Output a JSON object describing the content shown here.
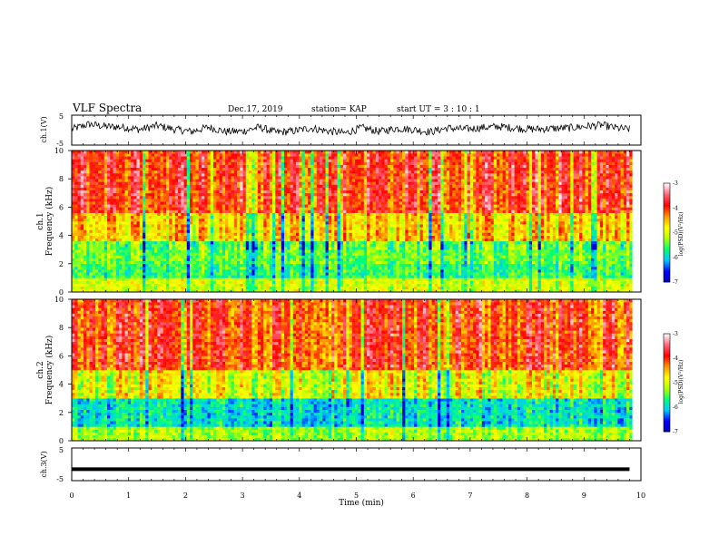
{
  "header": {
    "title": "VLF Spectra",
    "date": "Dec.17, 2019",
    "station": "station= KAP",
    "start": "start  UT =  3 : 10 : 1"
  },
  "chart_data": [
    {
      "type": "line",
      "panel": "ch1-waveform",
      "ylabel": "ch.1(V)",
      "ylim": [
        -5,
        5
      ],
      "yticks": [
        "5",
        "-5"
      ],
      "xlim": [
        0,
        10
      ],
      "series": [
        {
          "x": [
            0.0,
            0.3,
            0.6,
            0.9,
            1.2,
            1.5,
            1.8,
            2.1,
            2.4,
            2.7,
            3.0,
            3.3,
            3.6,
            3.9,
            4.2,
            4.5,
            4.8,
            5.1,
            5.4,
            5.7,
            6.0,
            6.3,
            6.6,
            6.9,
            7.2,
            7.5,
            7.8,
            8.1,
            8.4,
            8.7,
            9.0,
            9.3,
            9.6,
            9.8
          ],
          "values": [
            0.3,
            2.0,
            1.2,
            1.0,
            0.2,
            1.5,
            0.3,
            -0.5,
            1.0,
            -0.5,
            -0.4,
            1.0,
            -0.8,
            -0.3,
            0.7,
            -0.3,
            -1.0,
            0.8,
            -0.5,
            0.6,
            0.2,
            -0.6,
            0.7,
            0.3,
            0.8,
            1.2,
            0.7,
            0.3,
            0.5,
            0.7,
            1.2,
            1.7,
            0.6,
            0.3
          ]
        }
      ]
    },
    {
      "type": "heatmap",
      "panel": "ch1-spectrogram",
      "ylabel_line1": "ch.1",
      "ylabel_line2": "Frequency (kHz)",
      "ylim": [
        0,
        10
      ],
      "yticks": [
        "0",
        "2",
        "4",
        "6",
        "8",
        "10"
      ],
      "xlim": [
        0,
        10
      ],
      "colorbar": {
        "label": "log(PSD)(V²/Hz)",
        "range": [
          -7,
          -3
        ],
        "ticks": [
          "-3",
          "-4",
          "-5",
          "-6",
          "-7"
        ],
        "colormap": [
          "#0000b4",
          "#0000ff",
          "#00c8ff",
          "#00ff78",
          "#b4ff00",
          "#ffff00",
          "#ff9600",
          "#ff0000",
          "#ff6478",
          "#ffffff"
        ]
      },
      "rows_low_to_high_freq": [
        {
          "freq_range": [
            0,
            1.0
          ],
          "log_psd": -5.0
        },
        {
          "freq_range": [
            1.0,
            2.0
          ],
          "log_psd": -5.6
        },
        {
          "freq_range": [
            2.0,
            3.6
          ],
          "log_psd": -5.4
        },
        {
          "freq_range": [
            3.6,
            5.6
          ],
          "log_psd": -4.6
        },
        {
          "freq_range": [
            5.6,
            10.0
          ],
          "log_psd": -3.9
        }
      ]
    },
    {
      "type": "heatmap",
      "panel": "ch2-spectrogram",
      "ylabel_line1": "ch.2",
      "ylabel_line2": "Frequency (kHz)",
      "ylim": [
        0,
        10
      ],
      "yticks": [
        "0",
        "2",
        "4",
        "6",
        "8",
        "10"
      ],
      "xlim": [
        0,
        10
      ],
      "colorbar": {
        "label": "log(PSD)(V²/Hz)",
        "range": [
          -7,
          -3
        ],
        "ticks": [
          "-3",
          "-4",
          "-5",
          "-6",
          "-7"
        ]
      },
      "rows_low_to_high_freq": [
        {
          "freq_range": [
            0,
            1.0
          ],
          "log_psd": -5.2
        },
        {
          "freq_range": [
            1.0,
            3.0
          ],
          "log_psd": -5.9
        },
        {
          "freq_range": [
            3.0,
            5.0
          ],
          "log_psd": -4.9
        },
        {
          "freq_range": [
            5.0,
            10.0
          ],
          "log_psd": -4.0
        }
      ]
    },
    {
      "type": "line",
      "panel": "ch3-waveform",
      "ylabel": "ch.3(V)",
      "ylim": [
        -5,
        5
      ],
      "yticks": [
        "5",
        "-5"
      ],
      "xlim": [
        0,
        10
      ],
      "series": [
        {
          "x": [
            0.0,
            9.8
          ],
          "values": [
            -1.5,
            -1.5
          ]
        }
      ]
    }
  ],
  "xaxis": {
    "label": "Time (min)",
    "ticks": [
      "0",
      "1",
      "2",
      "3",
      "4",
      "5",
      "6",
      "7",
      "8",
      "9",
      "10"
    ]
  }
}
